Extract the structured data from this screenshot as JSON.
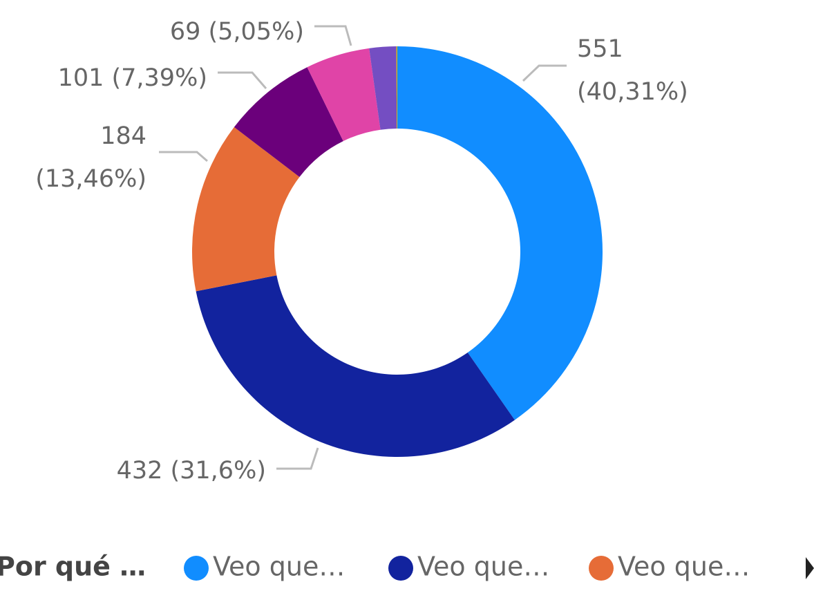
{
  "chart_data": {
    "type": "donut",
    "legend_title": "Por qué …",
    "categories": [
      "Veo que…",
      "Veo que…",
      "Veo que…",
      null,
      null,
      null,
      null
    ],
    "values": [
      551,
      432,
      184,
      101,
      69,
      29,
      1
    ],
    "value_labels": [
      "551 (40,31%)",
      "432 (31,6%)",
      "184 (13,46%)",
      "101 (7,39%)",
      "69 (5,05%)",
      null,
      null
    ],
    "colors": [
      "#118DFF",
      "#12239E",
      "#E66C37",
      "#6B007B",
      "#E044A7",
      "#744EC2",
      "#D9B300"
    ],
    "legend": "bottom-left"
  }
}
